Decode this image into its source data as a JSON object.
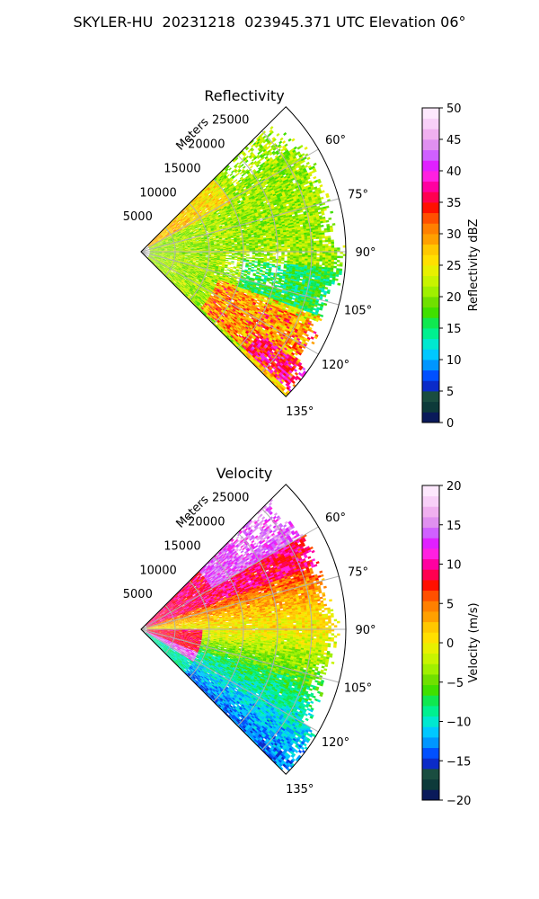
{
  "title": "SKYLER-HU  20231218  023945.371 UTC Elevation 06°",
  "chart_data": [
    {
      "type": "heatmap",
      "projection": "polar-sector",
      "title": "Reflectivity",
      "radial_label": "Meters",
      "range_ticks": [
        5000,
        10000,
        15000,
        20000,
        25000
      ],
      "range_tick_labels": [
        "5000",
        "10000",
        "15000",
        "20000",
        "25000"
      ],
      "azimuth_ticks": [
        60,
        75,
        90,
        105,
        120,
        135
      ],
      "azimuth_tick_labels": [
        "60°",
        "75°",
        "90°",
        "105°",
        "120°",
        "135°"
      ],
      "azimuth_range": [
        45,
        135
      ],
      "max_range": 30000,
      "colorbar": {
        "label": "Reflectivity dBZ",
        "range": [
          0,
          50
        ],
        "ticks": [
          0,
          5,
          10,
          15,
          20,
          25,
          30,
          35,
          40,
          45,
          50
        ],
        "tick_labels": [
          "0",
          "5",
          "10",
          "15",
          "20",
          "25",
          "30",
          "35",
          "40",
          "45",
          "50"
        ],
        "colors": [
          "#0a1a5a",
          "#0d3a3a",
          "#1a4d40",
          "#0b2bc8",
          "#0050ff",
          "#0096ff",
          "#00c8ff",
          "#00e8d0",
          "#00f090",
          "#10e850",
          "#40e000",
          "#70e000",
          "#a0f000",
          "#c8f400",
          "#e8f000",
          "#ffe000",
          "#ffc800",
          "#ffa000",
          "#ff8000",
          "#ff5000",
          "#ff1000",
          "#ff0050",
          "#ff00a0",
          "#ff20e0",
          "#e020ff",
          "#d060ff",
          "#e090f0",
          "#f0b0f0",
          "#f8d0f8",
          "#fde8fd"
        ]
      },
      "field_description_values": {
        "dominant_dBZ": 22,
        "core_max_dBZ": 38
      }
    },
    {
      "type": "heatmap",
      "projection": "polar-sector",
      "title": "Velocity",
      "radial_label": "Meters",
      "range_ticks": [
        5000,
        10000,
        15000,
        20000,
        25000
      ],
      "range_tick_labels": [
        "5000",
        "10000",
        "15000",
        "20000",
        "25000"
      ],
      "azimuth_ticks": [
        60,
        75,
        90,
        105,
        120,
        135
      ],
      "azimuth_tick_labels": [
        "60°",
        "75°",
        "90°",
        "105°",
        "120°",
        "135°"
      ],
      "azimuth_range": [
        45,
        135
      ],
      "max_range": 30000,
      "colorbar": {
        "label": "Velocity (m/s)",
        "range": [
          -20,
          20
        ],
        "ticks": [
          -20,
          -15,
          -10,
          -5,
          0,
          5,
          10,
          15,
          20
        ],
        "tick_labels": [
          "−20",
          "−15",
          "−10",
          "−5",
          "0",
          "5",
          "10",
          "15",
          "20"
        ],
        "colors": [
          "#0a1a5a",
          "#0d3a3a",
          "#1a4d40",
          "#0b2bc8",
          "#0050ff",
          "#0096ff",
          "#00c8ff",
          "#00e8d0",
          "#00f090",
          "#10e850",
          "#40e000",
          "#70e000",
          "#a0f000",
          "#c8f400",
          "#e8f000",
          "#ffe000",
          "#ffc800",
          "#ffa000",
          "#ff8000",
          "#ff5000",
          "#ff1000",
          "#ff0050",
          "#ff00a0",
          "#ff20e0",
          "#e020ff",
          "#d060ff",
          "#e090f0",
          "#f0b0f0",
          "#f8d0f8",
          "#fde8fd"
        ]
      }
    }
  ],
  "colors": {
    "grid": "#b0b0b0",
    "frame": "#000000"
  }
}
